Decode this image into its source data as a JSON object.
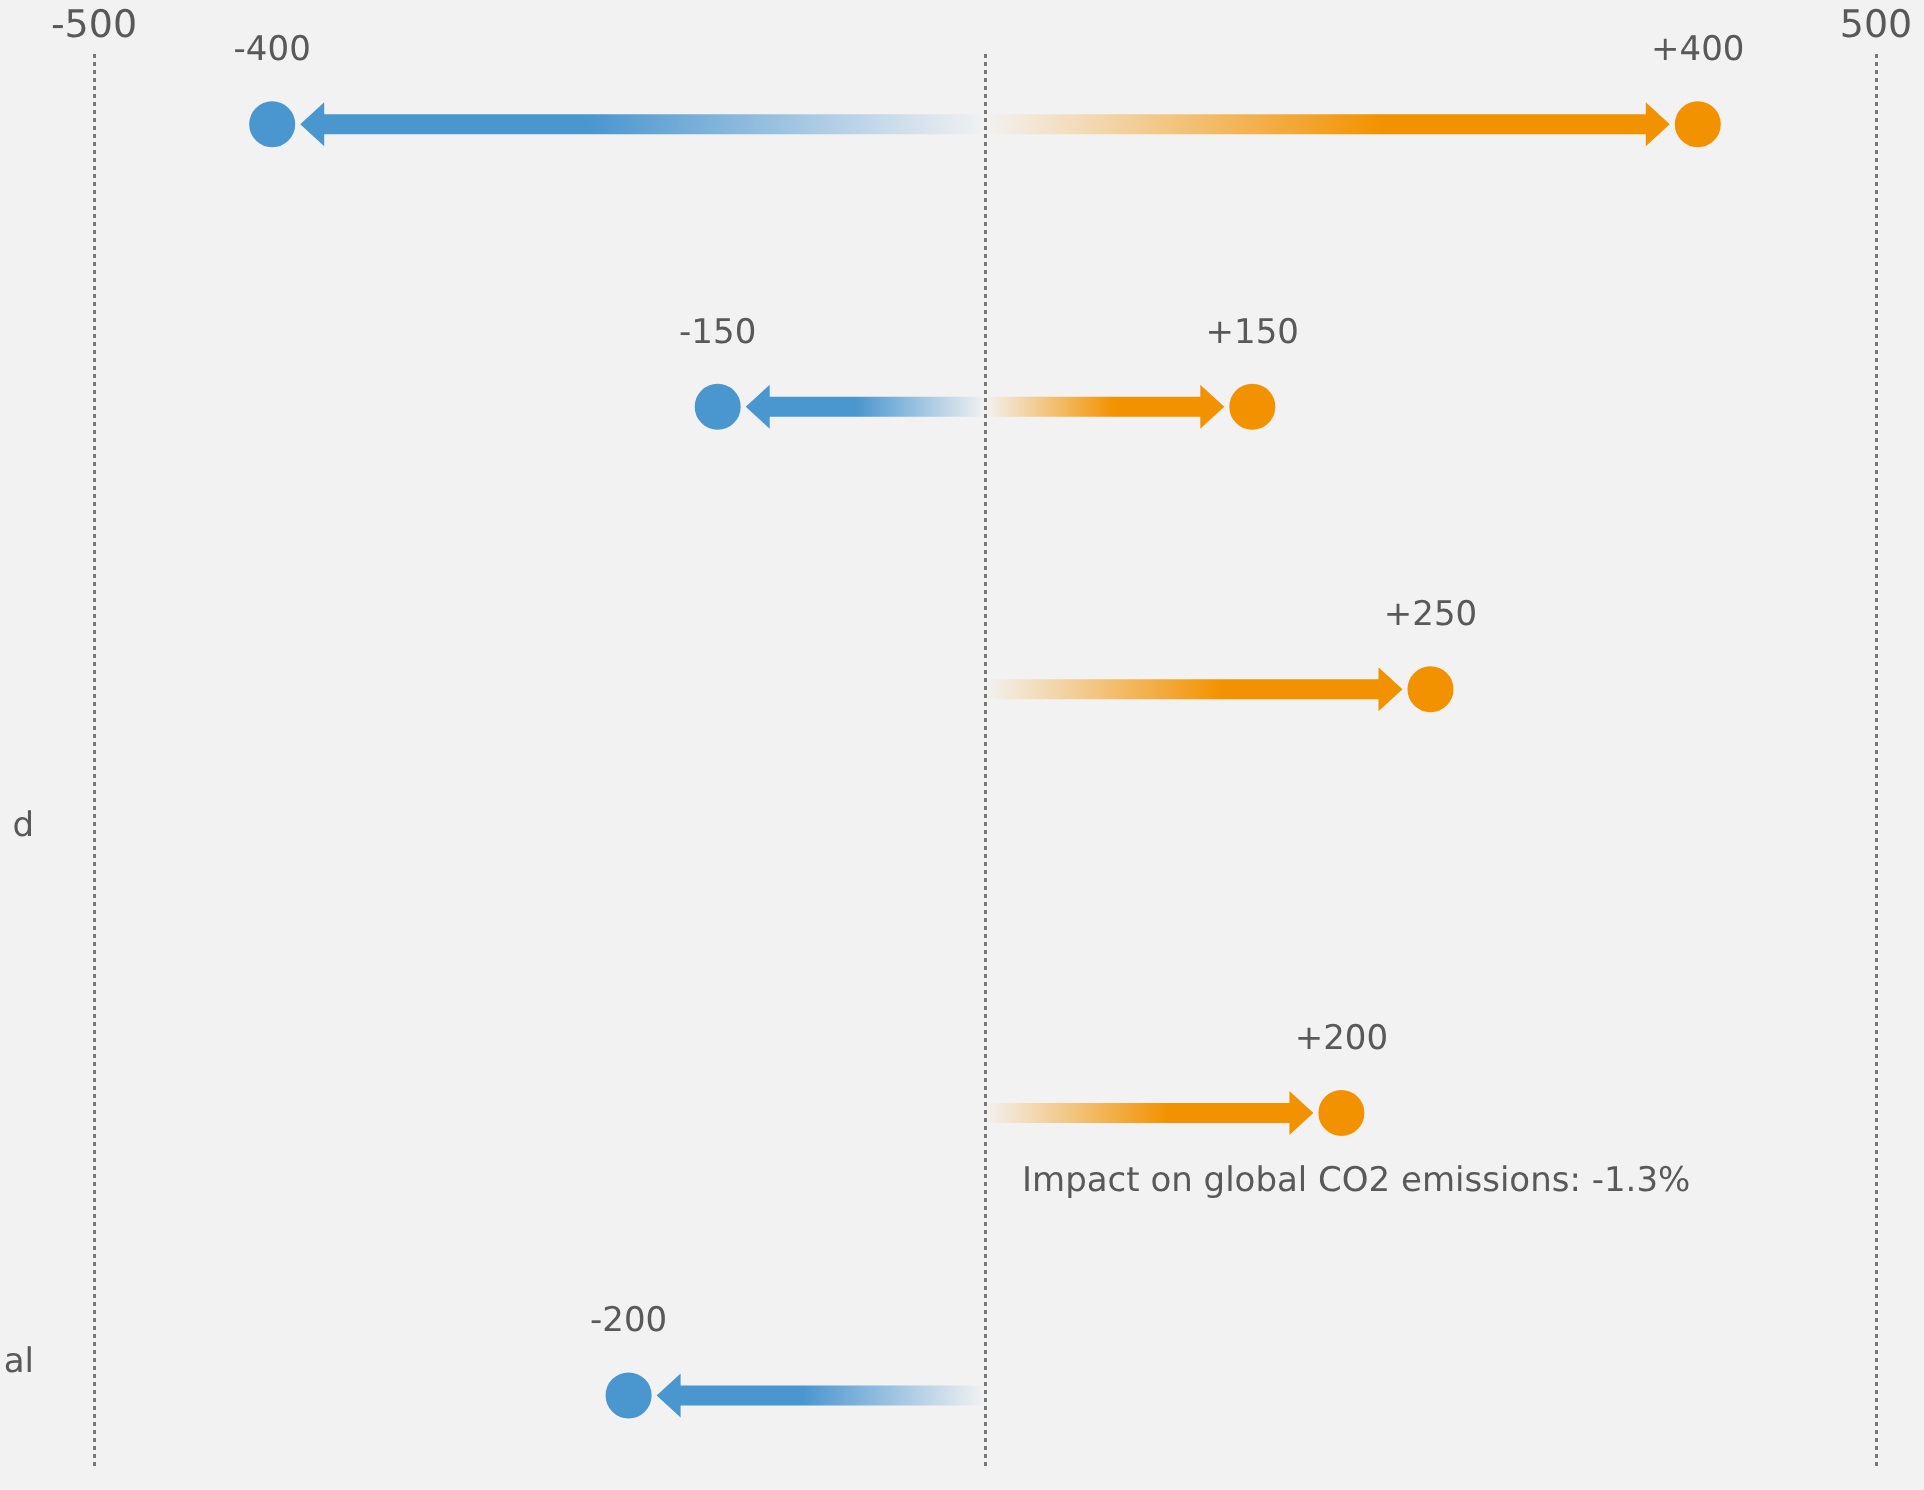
{
  "chart_data": {
    "type": "lollipop",
    "orientation": "horizontal",
    "categories": [
      null,
      null,
      null,
      null,
      null,
      null,
      null,
      null,
      null,
      null
    ],
    "series": [
      {
        "color": "#4a96cf",
        "values": [
          -400,
          null,
          -150,
          null,
          null,
          null,
          null,
          null,
          null,
          -200
        ],
        "value_labels": [
          "-400",
          null,
          "-150",
          null,
          null,
          null,
          null,
          null,
          null,
          "-200"
        ]
      },
      {
        "color": "#f39200",
        "values": [
          400,
          null,
          150,
          null,
          250,
          null,
          null,
          200,
          null,
          null
        ],
        "value_labels": [
          "+400",
          null,
          "+150",
          null,
          "+250",
          null,
          null,
          "+200",
          null,
          null
        ]
      }
    ],
    "xlim": [
      -500,
      500
    ],
    "xticks": [
      -500,
      {
        "value": 0,
        "label": null
      },
      500
    ],
    "tick_labels": "x",
    "grid": "x",
    "marker": "circle",
    "annotations": [
      "d",
      "al",
      "Impact on global CO2 emissions: -1.3%"
    ]
  }
}
